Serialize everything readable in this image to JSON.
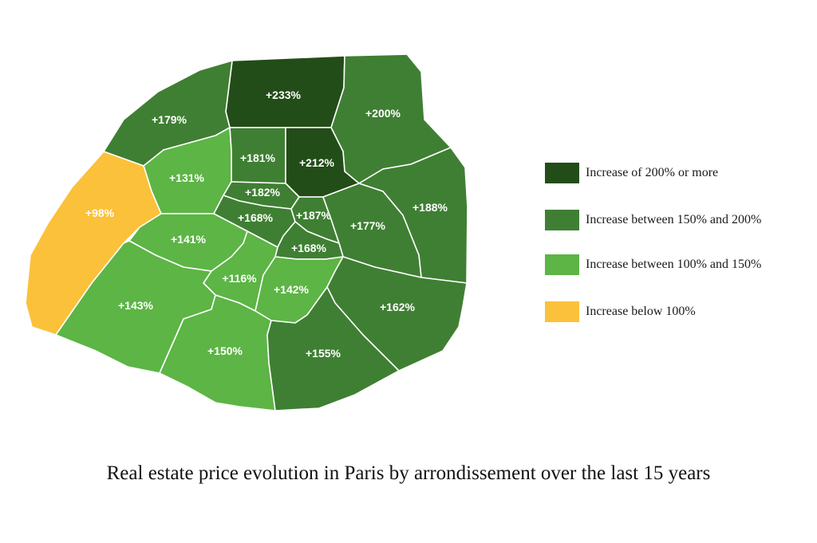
{
  "map": {
    "colors": {
      "dark": "#234d18",
      "medium": "#3f7f33",
      "light": "#5cb545",
      "yellow": "#fbc13a"
    },
    "districts": [
      {
        "id": "18",
        "label": "+233%",
        "category": "dark"
      },
      {
        "id": "17",
        "label": "+179%",
        "category": "medium"
      },
      {
        "id": "19",
        "label": "+200%",
        "category": "medium"
      },
      {
        "id": "9",
        "label": "+181%",
        "category": "medium"
      },
      {
        "id": "10",
        "label": "+212%",
        "category": "dark"
      },
      {
        "id": "8",
        "label": "+131%",
        "category": "light"
      },
      {
        "id": "16",
        "label": "+98%",
        "category": "yellow"
      },
      {
        "id": "2",
        "label": "+182%",
        "category": "medium"
      },
      {
        "id": "20",
        "label": "+188%",
        "category": "medium"
      },
      {
        "id": "1",
        "label": "+168%",
        "category": "medium"
      },
      {
        "id": "3",
        "label": "+187%",
        "category": "medium"
      },
      {
        "id": "11",
        "label": "+177%",
        "category": "medium"
      },
      {
        "id": "4",
        "label": "+168%",
        "category": "medium"
      },
      {
        "id": "7",
        "label": "+141%",
        "category": "light"
      },
      {
        "id": "6",
        "label": "+116%",
        "category": "light"
      },
      {
        "id": "5",
        "label": "+142%",
        "category": "light"
      },
      {
        "id": "15",
        "label": "+143%",
        "category": "light"
      },
      {
        "id": "12",
        "label": "+162%",
        "category": "medium"
      },
      {
        "id": "14",
        "label": "+150%",
        "category": "light"
      },
      {
        "id": "13",
        "label": "+155%",
        "category": "medium"
      }
    ]
  },
  "legend": [
    {
      "label": "Increase of 200% or more",
      "color": "#234d18"
    },
    {
      "label": "Increase between 150% and 200%",
      "color": "#3f7f33"
    },
    {
      "label": "Increase between 100% and 150%",
      "color": "#5cb545"
    },
    {
      "label": "Increase below 100%",
      "color": "#fbc13a"
    }
  ],
  "caption": "Real estate price evolution in Paris by arrondissement over the last 15 years"
}
